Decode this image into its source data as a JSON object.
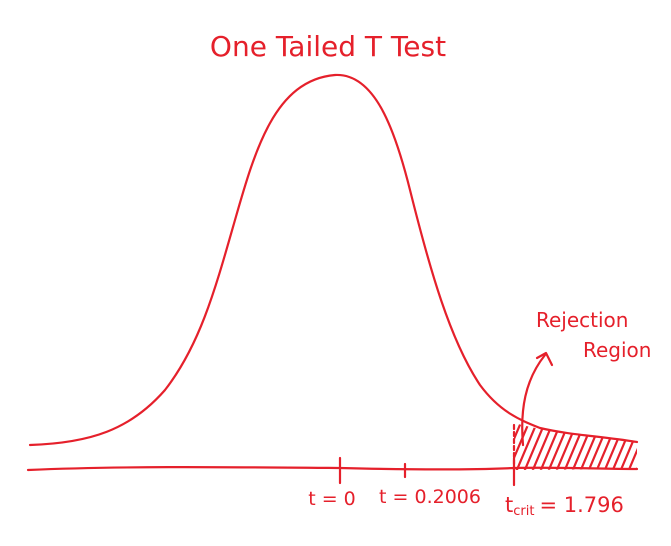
{
  "title": "One Tailed T Test",
  "annotation": {
    "line1": "Rejection",
    "line2": "Region"
  },
  "ticks": [
    {
      "label": "t = 0",
      "value": 0
    },
    {
      "label": "t = 0.2006",
      "value": 0.2006
    }
  ],
  "critical": {
    "symbol": "t",
    "subscript": "crit",
    "equals": "= 1.796",
    "value": 1.796
  },
  "colors": {
    "ink": "#e5202b"
  }
}
